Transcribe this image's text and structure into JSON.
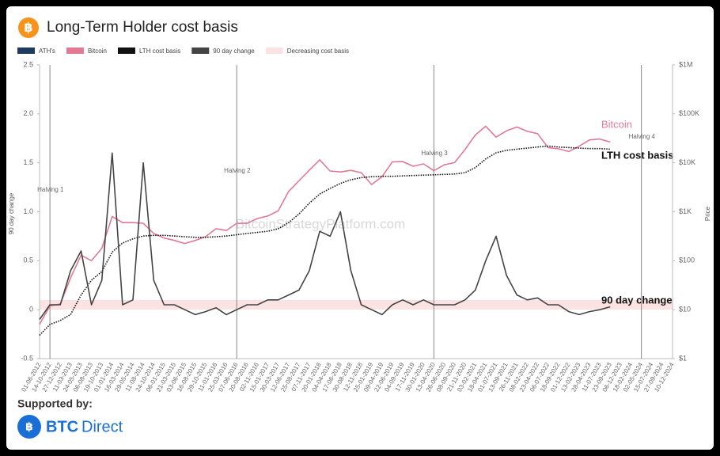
{
  "chart_data": {
    "type": "line",
    "title": "Long-Term Holder cost basis",
    "watermark": "BitcoinStrategyPlatform.com",
    "y_label": "90 day change",
    "y2_label": "Price",
    "legend_items": [
      {
        "name": "ATH's",
        "color": "#1f3a60"
      },
      {
        "name": "Bitcoin",
        "color": "#e07a95"
      },
      {
        "name": "LTH cost basis",
        "color": "#111111"
      },
      {
        "name": "90 day change",
        "color": "#444444"
      },
      {
        "name": "Decreasing cost basis",
        "color": "#fbe3e3"
      }
    ],
    "categories": [
      "01-06-2012",
      "14-10-2012",
      "27-12-2012",
      "11-03-2013",
      "24-05-2013",
      "06-08-2013",
      "19-10-2013",
      "01-01-2014",
      "16-03-2014",
      "29-05-2014",
      "11-08-2014",
      "24-10-2014",
      "06-01-2015",
      "21-03-2015",
      "03-06-2015",
      "16-08-2015",
      "29-10-2015",
      "11-01-2016",
      "25-03-2016",
      "07-06-2016",
      "20-08-2016",
      "02-11-2016",
      "15-01-2017",
      "30-03-2017",
      "12-06-2017",
      "25-08-2017",
      "07-11-2017",
      "20-01-2018",
      "04-04-2018",
      "17-06-2018",
      "30-08-2018",
      "12-11-2018",
      "25-01-2019",
      "09-04-2019",
      "22-06-2019",
      "04-09-2019",
      "17-11-2019",
      "30-01-2020",
      "13-04-2020",
      "26-06-2020",
      "08-09-2020",
      "21-11-2020",
      "03-02-2021",
      "18-04-2021",
      "01-07-2021",
      "13-09-2021",
      "26-11-2021",
      "08-02-2022",
      "23-04-2022",
      "06-07-2022",
      "18-09-2022",
      "01-12-2022",
      "13-02-2023",
      "28-04-2023",
      "11-07-2023",
      "23-09-2023",
      "06-12-2023",
      "18-02-2024",
      "02-05-2024",
      "15-07-2024",
      "27-09-2024",
      "10-12-2024"
    ],
    "series": [
      {
        "name": "Bitcoin",
        "color": "#e07a95",
        "axis": "y2",
        "style": "solid",
        "values": [
          5,
          12,
          13,
          45,
          130,
          100,
          180,
          800,
          600,
          600,
          580,
          360,
          290,
          260,
          225,
          260,
          310,
          450,
          415,
          580,
          580,
          730,
          820,
          1040,
          2600,
          4300,
          7100,
          11500,
          6800,
          6500,
          7000,
          6300,
          3600,
          5200,
          10500,
          10600,
          8500,
          9500,
          6900,
          9100,
          10100,
          18700,
          37000,
          56000,
          33500,
          44900,
          54000,
          44000,
          39500,
          20500,
          19400,
          17000,
          21800,
          29400,
          30600,
          26500,
          null,
          null,
          null,
          null,
          null,
          null
        ]
      },
      {
        "name": "LTH cost basis",
        "color": "#111111",
        "axis": "y2",
        "style": "dotted",
        "values": [
          3,
          5,
          6,
          8,
          20,
          40,
          60,
          150,
          230,
          280,
          320,
          330,
          330,
          320,
          310,
          300,
          300,
          310,
          320,
          340,
          360,
          380,
          400,
          450,
          600,
          900,
          1500,
          2300,
          3000,
          3800,
          4500,
          5000,
          5200,
          5300,
          5300,
          5400,
          5500,
          5600,
          5700,
          5800,
          5900,
          6300,
          8000,
          12000,
          16000,
          18000,
          19000,
          20000,
          21000,
          22000,
          21000,
          20500,
          20000,
          19500,
          19500,
          19000,
          null,
          null,
          null,
          null,
          null,
          null
        ]
      },
      {
        "name": "90 day change",
        "color": "#444444",
        "axis": "y",
        "style": "solid",
        "values": [
          -0.1,
          0.05,
          0.05,
          0.4,
          0.6,
          0.05,
          0.3,
          1.6,
          0.05,
          0.1,
          1.5,
          0.3,
          0.05,
          0.05,
          0,
          -0.05,
          -0.02,
          0.02,
          -0.05,
          0,
          0.05,
          0.05,
          0.1,
          0.1,
          0.15,
          0.2,
          0.4,
          0.8,
          0.75,
          1.0,
          0.4,
          0.05,
          0,
          -0.05,
          0.05,
          0.1,
          0.05,
          0.1,
          0.05,
          0.05,
          0.05,
          0.1,
          0.2,
          0.5,
          0.75,
          0.35,
          0.15,
          0.1,
          0.12,
          0.05,
          0.05,
          -0.02,
          -0.05,
          -0.02,
          0,
          0.03,
          null,
          null,
          null,
          null,
          null,
          null
        ]
      }
    ],
    "ylim": [
      -0.5,
      2.5
    ],
    "yticks": [
      -0.5,
      0,
      0.5,
      {
        "value": 1,
        "label": "1.0"
      },
      1.5,
      {
        "value": 2,
        "label": "2.0"
      },
      2.5
    ],
    "y2lim": [
      1,
      1000000
    ],
    "y2scale": "log",
    "y2ticks": [
      {
        "value": 1,
        "label": "$1"
      },
      {
        "value": 10,
        "label": "$10"
      },
      {
        "value": 100,
        "label": "$100"
      },
      {
        "value": 1000,
        "label": "$1K"
      },
      {
        "value": 10000,
        "label": "$10K"
      },
      {
        "value": 100000,
        "label": "$100K"
      },
      {
        "value": 1000000,
        "label": "$1M"
      }
    ],
    "grid": false,
    "annotations": [
      {
        "text": "Halving 1",
        "x": "14-10-2012"
      },
      {
        "text": "Halving 2",
        "x": "07-06-2016"
      },
      {
        "text": "Halving 3",
        "x": "13-04-2020"
      },
      {
        "text": "Halving 4",
        "x": "02-05-2024"
      }
    ]
  },
  "footer": {
    "text": "Supported by:",
    "brand_bold": "BTC",
    "brand": "Direct"
  }
}
